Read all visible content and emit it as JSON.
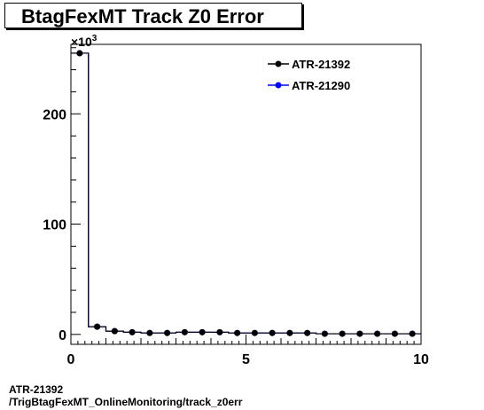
{
  "title": "BtagFexMT Track Z0 Error",
  "footer": {
    "line1": "ATR-21392",
    "line2": "/TrigBtagFexMT_OnlineMonitoring/track_z0err"
  },
  "chart_data": {
    "type": "line",
    "title": "BtagFexMT Track Z0 Error",
    "xlabel": "",
    "ylabel": "",
    "y_multiplier_label": "×10",
    "y_multiplier_exponent": "3",
    "xlim": [
      0,
      10
    ],
    "ylim": [
      -9,
      263
    ],
    "x_ticks": [
      0,
      5,
      10
    ],
    "x_tick_labels": [
      "0",
      "5",
      "10"
    ],
    "y_ticks": [
      0,
      100,
      200
    ],
    "y_tick_labels": [
      "0",
      "100",
      "200"
    ],
    "bin_edges": [
      0,
      0.5,
      1.0,
      1.5,
      2.0,
      2.5,
      3.0,
      3.5,
      4.0,
      4.5,
      5.0,
      5.5,
      6.0,
      6.5,
      7.0,
      7.5,
      8.0,
      8.5,
      9.0,
      9.5,
      10.0
    ],
    "grid": false,
    "legend_position": "top-right",
    "series": [
      {
        "name": "ATR-21392",
        "color": "#000000",
        "x": [
          0.25,
          0.75,
          1.25,
          1.75,
          2.25,
          2.75,
          3.25,
          3.75,
          4.25,
          4.75,
          5.25,
          5.75,
          6.25,
          6.75,
          7.25,
          7.75,
          8.25,
          8.75,
          9.25,
          9.75
        ],
        "values": [
          255,
          7,
          3,
          2,
          1.3,
          1.3,
          2,
          2,
          2,
          1.3,
          1.3,
          1.3,
          1.3,
          1.3,
          0.6,
          0.6,
          0.6,
          0.6,
          0.6,
          0.6
        ]
      },
      {
        "name": "ATR-21290",
        "color": "#0000ff",
        "x": [
          0.25,
          0.75,
          1.25,
          1.75,
          2.25,
          2.75,
          3.25,
          3.75,
          4.25,
          4.75,
          5.25,
          5.75,
          6.25,
          6.75,
          7.25,
          7.75,
          8.25,
          8.75,
          9.25,
          9.75
        ],
        "values": [
          255,
          7,
          3,
          2,
          1.3,
          1.3,
          2,
          2,
          2,
          1.3,
          1.3,
          1.3,
          1.3,
          1.3,
          0.6,
          0.6,
          0.6,
          0.6,
          0.6,
          0.6
        ]
      }
    ]
  }
}
